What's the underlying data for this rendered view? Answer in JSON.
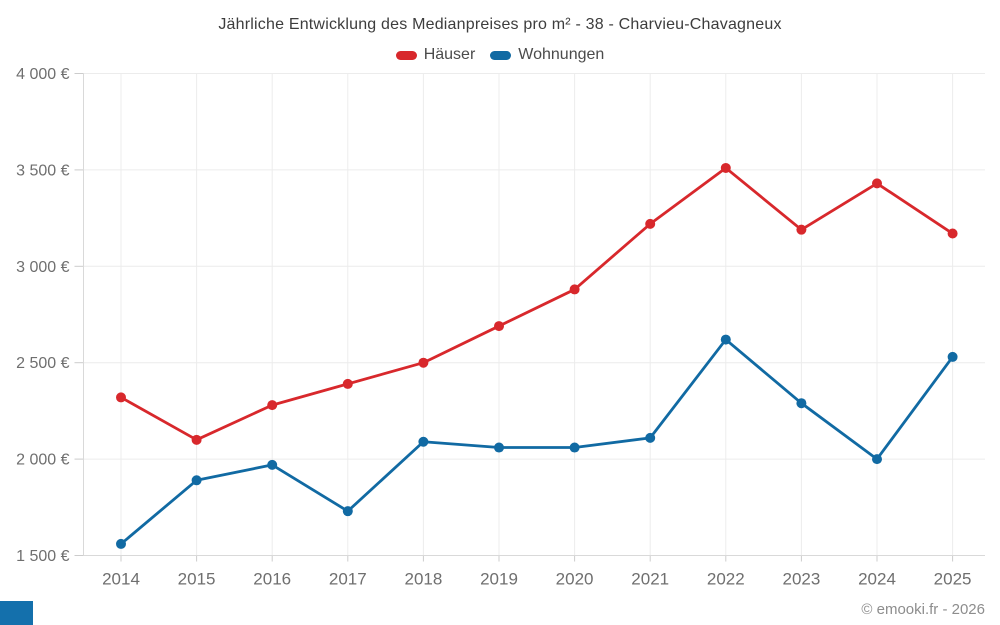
{
  "footer": {
    "credit": "© emooki.fr - 2026"
  },
  "brand": {
    "logo_color": "#1470ac"
  },
  "chart_data": {
    "type": "line",
    "title": "Jährliche Entwicklung des Medianpreises pro m² - 38 - Charvieu-Chavagneux",
    "x": [
      "2014",
      "2015",
      "2016",
      "2017",
      "2018",
      "2019",
      "2020",
      "2021",
      "2022",
      "2023",
      "2024",
      "2025"
    ],
    "xlabel": "",
    "ylabel": "",
    "ylim": [
      1500,
      4000
    ],
    "grid": true,
    "legend_position": "top",
    "yticks": [
      {
        "value": 1500,
        "label": "1 500 €"
      },
      {
        "value": 2000,
        "label": "2 000 €"
      },
      {
        "value": 2500,
        "label": "2 500 €"
      },
      {
        "value": 3000,
        "label": "3 000 €"
      },
      {
        "value": 3500,
        "label": "3 500 €"
      },
      {
        "value": 4000,
        "label": "4 000 €"
      }
    ],
    "series": [
      {
        "name": "Häuser",
        "color": "#d8282c",
        "values": [
          2320,
          2100,
          2280,
          2390,
          2500,
          2690,
          2880,
          3220,
          3510,
          3190,
          3430,
          3170
        ]
      },
      {
        "name": "Wohnungen",
        "color": "#116aa3",
        "values": [
          1560,
          1890,
          1970,
          1730,
          2090,
          2060,
          2060,
          2110,
          2620,
          2290,
          2000,
          2530
        ]
      }
    ]
  }
}
